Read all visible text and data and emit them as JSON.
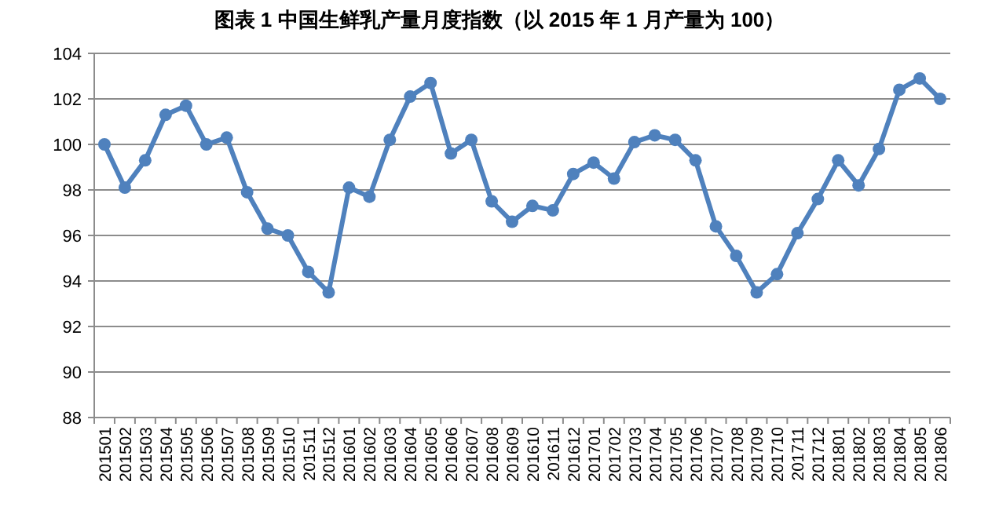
{
  "chart_data": {
    "type": "line",
    "title": "图表 1 中国生鲜乳产量月度指数（以 2015 年 1 月产量为 100）",
    "categories": [
      "201501",
      "201502",
      "201503",
      "201504",
      "201505",
      "201506",
      "201507",
      "201508",
      "201509",
      "201510",
      "201511",
      "201512",
      "201601",
      "201602",
      "201603",
      "201604",
      "201605",
      "201606",
      "201607",
      "201608",
      "201609",
      "201610",
      "201611",
      "201612",
      "201701",
      "201702",
      "201703",
      "201704",
      "201705",
      "201706",
      "201707",
      "201708",
      "201709",
      "201710",
      "201711",
      "201712",
      "201801",
      "201802",
      "201803",
      "201804",
      "201805",
      "201806"
    ],
    "series": [
      {
        "color": "#4f81bd",
        "values": [
          100.0,
          98.1,
          99.3,
          101.3,
          101.7,
          100.0,
          100.3,
          97.9,
          96.3,
          96.0,
          94.4,
          93.5,
          98.1,
          97.7,
          100.2,
          102.1,
          102.7,
          99.6,
          100.2,
          97.5,
          96.6,
          97.3,
          97.1,
          98.7,
          99.2,
          98.5,
          100.1,
          100.4,
          100.2,
          99.3,
          96.4,
          95.1,
          93.5,
          94.3,
          96.1,
          97.6,
          99.3,
          98.2,
          99.8,
          102.4,
          102.9,
          102.0
        ]
      }
    ],
    "ylim": [
      88,
      104
    ],
    "yticks": [
      88,
      90,
      92,
      94,
      96,
      98,
      100,
      102,
      104
    ],
    "grid": "y",
    "marker": "circle",
    "line_style": "solid"
  }
}
